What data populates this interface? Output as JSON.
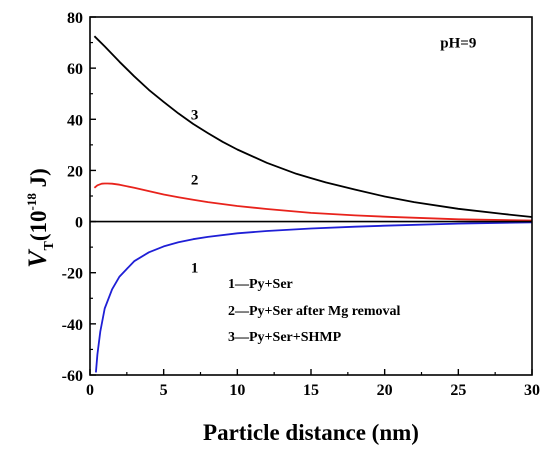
{
  "chart_data": {
    "type": "line",
    "title": "",
    "xlabel": "Particle distance (nm)",
    "ylabel": {
      "main": "V",
      "sub": "T",
      "unit_open": "(10",
      "unit_exp": "-18",
      "unit_close": " J)"
    },
    "xlim": [
      0,
      30
    ],
    "ylim": [
      -60,
      80
    ],
    "xticks": [
      0,
      5,
      10,
      15,
      20,
      25,
      30
    ],
    "yticks": [
      -60,
      -40,
      -20,
      0,
      20,
      40,
      60,
      80
    ],
    "grid": false,
    "legend_placement": "bottom-center",
    "annotations": [
      {
        "text": "pH=9",
        "x": 25,
        "y": 68
      },
      {
        "text": "3",
        "x": 7.1,
        "y": 40
      },
      {
        "text": "2",
        "x": 7.1,
        "y": 14.5
      },
      {
        "text": "1",
        "x": 7.1,
        "y": -20
      }
    ],
    "legend": [
      "1—Py+Ser",
      "2—Py+Ser after Mg removal",
      "3—Py+Ser+SHMP"
    ],
    "series": [
      {
        "label": "1",
        "color": "#1f1fd6",
        "x": [
          0.4,
          0.5,
          0.7,
          1,
          1.5,
          2,
          3,
          4,
          5,
          6,
          7,
          8,
          10,
          12,
          15,
          18,
          20,
          25,
          30
        ],
        "y": [
          -59,
          -52,
          -43,
          -34,
          -26.5,
          -21.5,
          -15.5,
          -12,
          -9.7,
          -8.1,
          -6.9,
          -6,
          -4.6,
          -3.7,
          -2.7,
          -2,
          -1.6,
          -0.8,
          -0.3
        ]
      },
      {
        "label": "2",
        "color": "#e8231c",
        "x": [
          0.3,
          0.5,
          0.8,
          1,
          1.2,
          1.5,
          2,
          3,
          4,
          5,
          6,
          7,
          8,
          10,
          12,
          15,
          18,
          20,
          25,
          30
        ],
        "y": [
          13.2,
          14.2,
          14.8,
          14.9,
          14.9,
          14.8,
          14.4,
          13.2,
          11.9,
          10.6,
          9.5,
          8.5,
          7.6,
          6.1,
          4.9,
          3.4,
          2.4,
          1.9,
          0.9,
          0.4
        ]
      },
      {
        "label": "3",
        "color": "#000000",
        "x": [
          0.3,
          1,
          2,
          3,
          4,
          5,
          6,
          7,
          8,
          9,
          10,
          12,
          14,
          15,
          16,
          18,
          20,
          22,
          25,
          28,
          30
        ],
        "y": [
          72.5,
          68.5,
          62.5,
          56.8,
          51.5,
          46.8,
          42.3,
          38.2,
          34.6,
          31.2,
          28.2,
          23,
          18.7,
          17,
          15.3,
          12.5,
          9.8,
          7.6,
          5,
          3,
          1.8
        ]
      }
    ]
  }
}
